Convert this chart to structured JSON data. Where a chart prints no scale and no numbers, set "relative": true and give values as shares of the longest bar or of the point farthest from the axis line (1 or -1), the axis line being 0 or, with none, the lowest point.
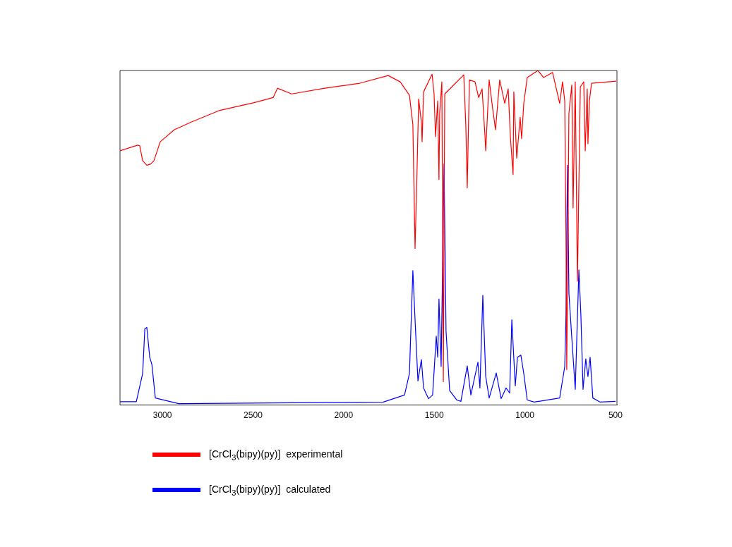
{
  "chart_data": {
    "type": "line",
    "relative": true,
    "xlim": [
      3234,
      492
    ],
    "xticks": [
      3000,
      2500,
      2000,
      1500,
      1000,
      500
    ],
    "legend": "bottom",
    "grid": false,
    "series": [
      {
        "name": "[CrCl$_{3}$(bipy)(py)]  experimental",
        "color": "#ff0000",
        "x": [
          3234,
          3136,
          3125,
          3109,
          3086,
          3066,
          3047,
          3012,
          2934,
          2844,
          2688,
          2494,
          2389,
          2365,
          2287,
          2104,
          1910,
          1754,
          1688,
          1637,
          1618,
          1606,
          1598,
          1586,
          1571,
          1567,
          1559,
          1512,
          1501,
          1493,
          1481,
          1474,
          1470,
          1458,
          1450,
          1442,
          1403,
          1337,
          1326,
          1318,
          1306,
          1275,
          1255,
          1236,
          1220,
          1216,
          1197,
          1178,
          1162,
          1139,
          1111,
          1092,
          1080,
          1065,
          1061,
          1045,
          1026,
          1018,
          1006,
          987,
          928,
          897,
          847,
          808,
          792,
          780,
          773,
          769,
          757,
          741,
          734,
          722,
          710,
          694,
          675,
          667,
          656,
          652,
          644,
          632,
          496
        ],
        "values": [
          0.76,
          0.777,
          0.775,
          0.73,
          0.717,
          0.72,
          0.73,
          0.787,
          0.823,
          0.845,
          0.88,
          0.904,
          0.919,
          0.947,
          0.93,
          0.947,
          0.962,
          0.985,
          0.966,
          0.926,
          0.838,
          0.468,
          0.632,
          0.915,
          0.845,
          0.787,
          0.936,
          0.989,
          0.93,
          0.802,
          0.909,
          0.674,
          0.872,
          0.966,
          0.07,
          0.93,
          0.951,
          0.987,
          0.838,
          0.649,
          0.972,
          0.966,
          0.919,
          0.945,
          0.802,
          0.76,
          0.972,
          0.887,
          0.823,
          0.972,
          0.902,
          0.945,
          0.802,
          0.689,
          0.936,
          0.738,
          0.86,
          0.796,
          0.902,
          0.979,
          1.0,
          0.979,
          0.994,
          0.902,
          0.966,
          0.909,
          0.489,
          0.106,
          0.872,
          0.957,
          0.589,
          0.966,
          0.37,
          0.951,
          0.966,
          0.76,
          0.945,
          0.781,
          0.909,
          0.962,
          0.968
        ]
      },
      {
        "name": "[CrCl$_{3}$(bipy)(py)]  calculated",
        "color": "#0000ff",
        "x": [
          3234,
          3144,
          3109,
          3097,
          3086,
          3070,
          3058,
          3039,
          2910,
          1781,
          1664,
          1637,
          1618,
          1606,
          1590,
          1571,
          1559,
          1532,
          1509,
          1489,
          1481,
          1474,
          1462,
          1446,
          1435,
          1415,
          1376,
          1353,
          1318,
          1298,
          1259,
          1248,
          1232,
          1216,
          1197,
          1158,
          1131,
          1104,
          1084,
          1072,
          1053,
          1041,
          1022,
          1006,
          987,
          948,
          808,
          780,
          773,
          765,
          757,
          741,
          722,
          702,
          691,
          679,
          664,
          652,
          640,
          625,
          586,
          500
        ],
        "values": [
          0.01,
          0.01,
          0.094,
          0.228,
          0.232,
          0.143,
          0.121,
          0.021,
          0.004,
          0.009,
          0.03,
          0.094,
          0.402,
          0.255,
          0.072,
          0.136,
          0.051,
          0.019,
          0.03,
          0.206,
          0.143,
          0.317,
          0.115,
          0.721,
          0.221,
          0.043,
          0.015,
          0.011,
          0.117,
          0.03,
          0.128,
          0.051,
          0.328,
          0.085,
          0.021,
          0.096,
          0.019,
          0.051,
          0.036,
          0.255,
          0.057,
          0.143,
          0.149,
          0.094,
          0.015,
          0.009,
          0.021,
          0.115,
          0.27,
          0.717,
          0.334,
          0.2,
          0.047,
          0.404,
          0.27,
          0.047,
          0.138,
          0.085,
          0.143,
          0.021,
          0.009,
          0.011
        ]
      }
    ]
  }
}
